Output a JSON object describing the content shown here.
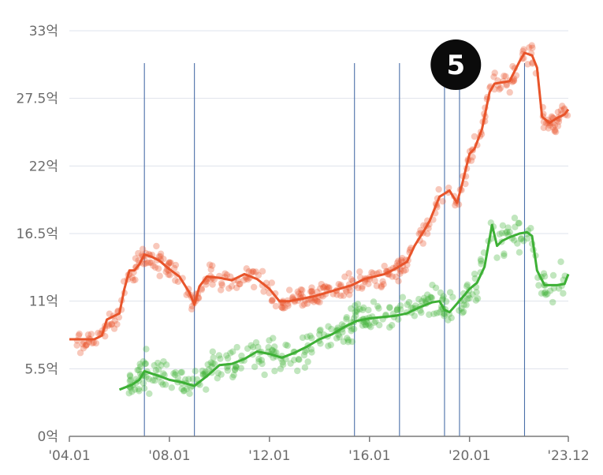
{
  "chart_data": {
    "type": "line",
    "xlabel": "",
    "ylabel": "",
    "ylim": [
      0,
      33
    ],
    "y_ticks": [
      {
        "value": 0,
        "label": "0억"
      },
      {
        "value": 5.5,
        "label": "5.5억"
      },
      {
        "value": 11,
        "label": "11억"
      },
      {
        "value": 16.5,
        "label": "16.5억"
      },
      {
        "value": 22,
        "label": "22억"
      },
      {
        "value": 27.5,
        "label": "27.5억"
      },
      {
        "value": 33,
        "label": "33억"
      }
    ],
    "xlim": [
      2004.0,
      2023.95
    ],
    "x_ticks": [
      {
        "value": 2004.0,
        "label": "'04.01"
      },
      {
        "value": 2008.0,
        "label": "'08.01"
      },
      {
        "value": 2012.0,
        "label": "'12.01"
      },
      {
        "value": 2016.0,
        "label": "'16.01"
      },
      {
        "value": 2020.0,
        "label": "'20.01"
      },
      {
        "value": 2023.95,
        "label": "'23.12"
      }
    ],
    "grid": true,
    "vertical_markers": [
      2007.0,
      2009.0,
      2015.4,
      2017.2,
      2019.0,
      2019.6,
      2022.2
    ],
    "badge": {
      "text": "5",
      "x": 2019.2
    },
    "series": [
      {
        "color": "#e8542a",
        "x": [
          2004.0,
          2004.5,
          2005.0,
          2005.3,
          2005.5,
          2006.0,
          2006.2,
          2006.4,
          2006.6,
          2006.8,
          2007.0,
          2007.3,
          2007.6,
          2008.0,
          2008.4,
          2008.8,
          2009.0,
          2009.2,
          2009.5,
          2010.0,
          2010.5,
          2011.0,
          2011.5,
          2012.0,
          2012.4,
          2012.8,
          2013.3,
          2013.8,
          2014.3,
          2014.8,
          2015.3,
          2015.8,
          2016.2,
          2016.6,
          2017.0,
          2017.5,
          2017.8,
          2018.2,
          2018.4,
          2018.8,
          2019.2,
          2019.5,
          2019.7,
          2020.0,
          2020.2,
          2020.5,
          2020.8,
          2021.0,
          2021.3,
          2021.6,
          2022.0,
          2022.2,
          2022.5,
          2022.7,
          2022.9,
          2023.2,
          2023.5,
          2023.8,
          2023.95
        ],
        "y": [
          7.9,
          7.9,
          7.9,
          8.2,
          9.5,
          10.0,
          12.0,
          13.5,
          13.5,
          14.0,
          14.8,
          14.6,
          14.3,
          13.6,
          13.0,
          11.7,
          10.7,
          12.2,
          13.0,
          12.9,
          12.7,
          13.2,
          12.8,
          12.0,
          11.0,
          11.0,
          11.2,
          11.4,
          11.7,
          12.0,
          12.3,
          12.8,
          13.0,
          13.2,
          13.6,
          14.2,
          15.5,
          16.8,
          17.5,
          19.5,
          20.0,
          19.0,
          20.5,
          23.0,
          23.4,
          25.0,
          28.0,
          28.7,
          28.8,
          28.9,
          30.5,
          31.2,
          31.0,
          30.0,
          26.0,
          25.5,
          25.9,
          26.2,
          26.6
        ]
      },
      {
        "color": "#3db035",
        "x": [
          2006.0,
          2006.5,
          2006.8,
          2007.0,
          2007.3,
          2007.6,
          2008.0,
          2008.5,
          2009.0,
          2009.5,
          2010.0,
          2010.5,
          2011.0,
          2011.5,
          2012.0,
          2012.5,
          2013.0,
          2013.5,
          2014.0,
          2014.5,
          2015.0,
          2015.5,
          2016.0,
          2016.5,
          2017.0,
          2017.5,
          2018.0,
          2018.5,
          2018.8,
          2019.0,
          2019.2,
          2019.5,
          2019.8,
          2020.0,
          2020.3,
          2020.6,
          2020.9,
          2021.1,
          2021.3,
          2021.6,
          2022.0,
          2022.3,
          2022.5,
          2022.7,
          2023.0,
          2023.5,
          2023.8,
          2023.95
        ],
        "y": [
          3.8,
          4.2,
          4.6,
          5.3,
          5.1,
          4.9,
          4.6,
          4.4,
          4.1,
          4.9,
          5.8,
          5.9,
          6.3,
          6.9,
          6.7,
          6.4,
          6.8,
          7.3,
          7.9,
          8.3,
          8.9,
          9.4,
          9.6,
          9.7,
          9.8,
          10.0,
          10.5,
          10.9,
          11.0,
          10.3,
          10.1,
          10.8,
          11.5,
          12.0,
          12.5,
          13.8,
          17.2,
          15.5,
          15.9,
          16.2,
          16.5,
          16.6,
          16.3,
          13.5,
          12.3,
          12.3,
          12.4,
          13.2
        ]
      }
    ]
  }
}
